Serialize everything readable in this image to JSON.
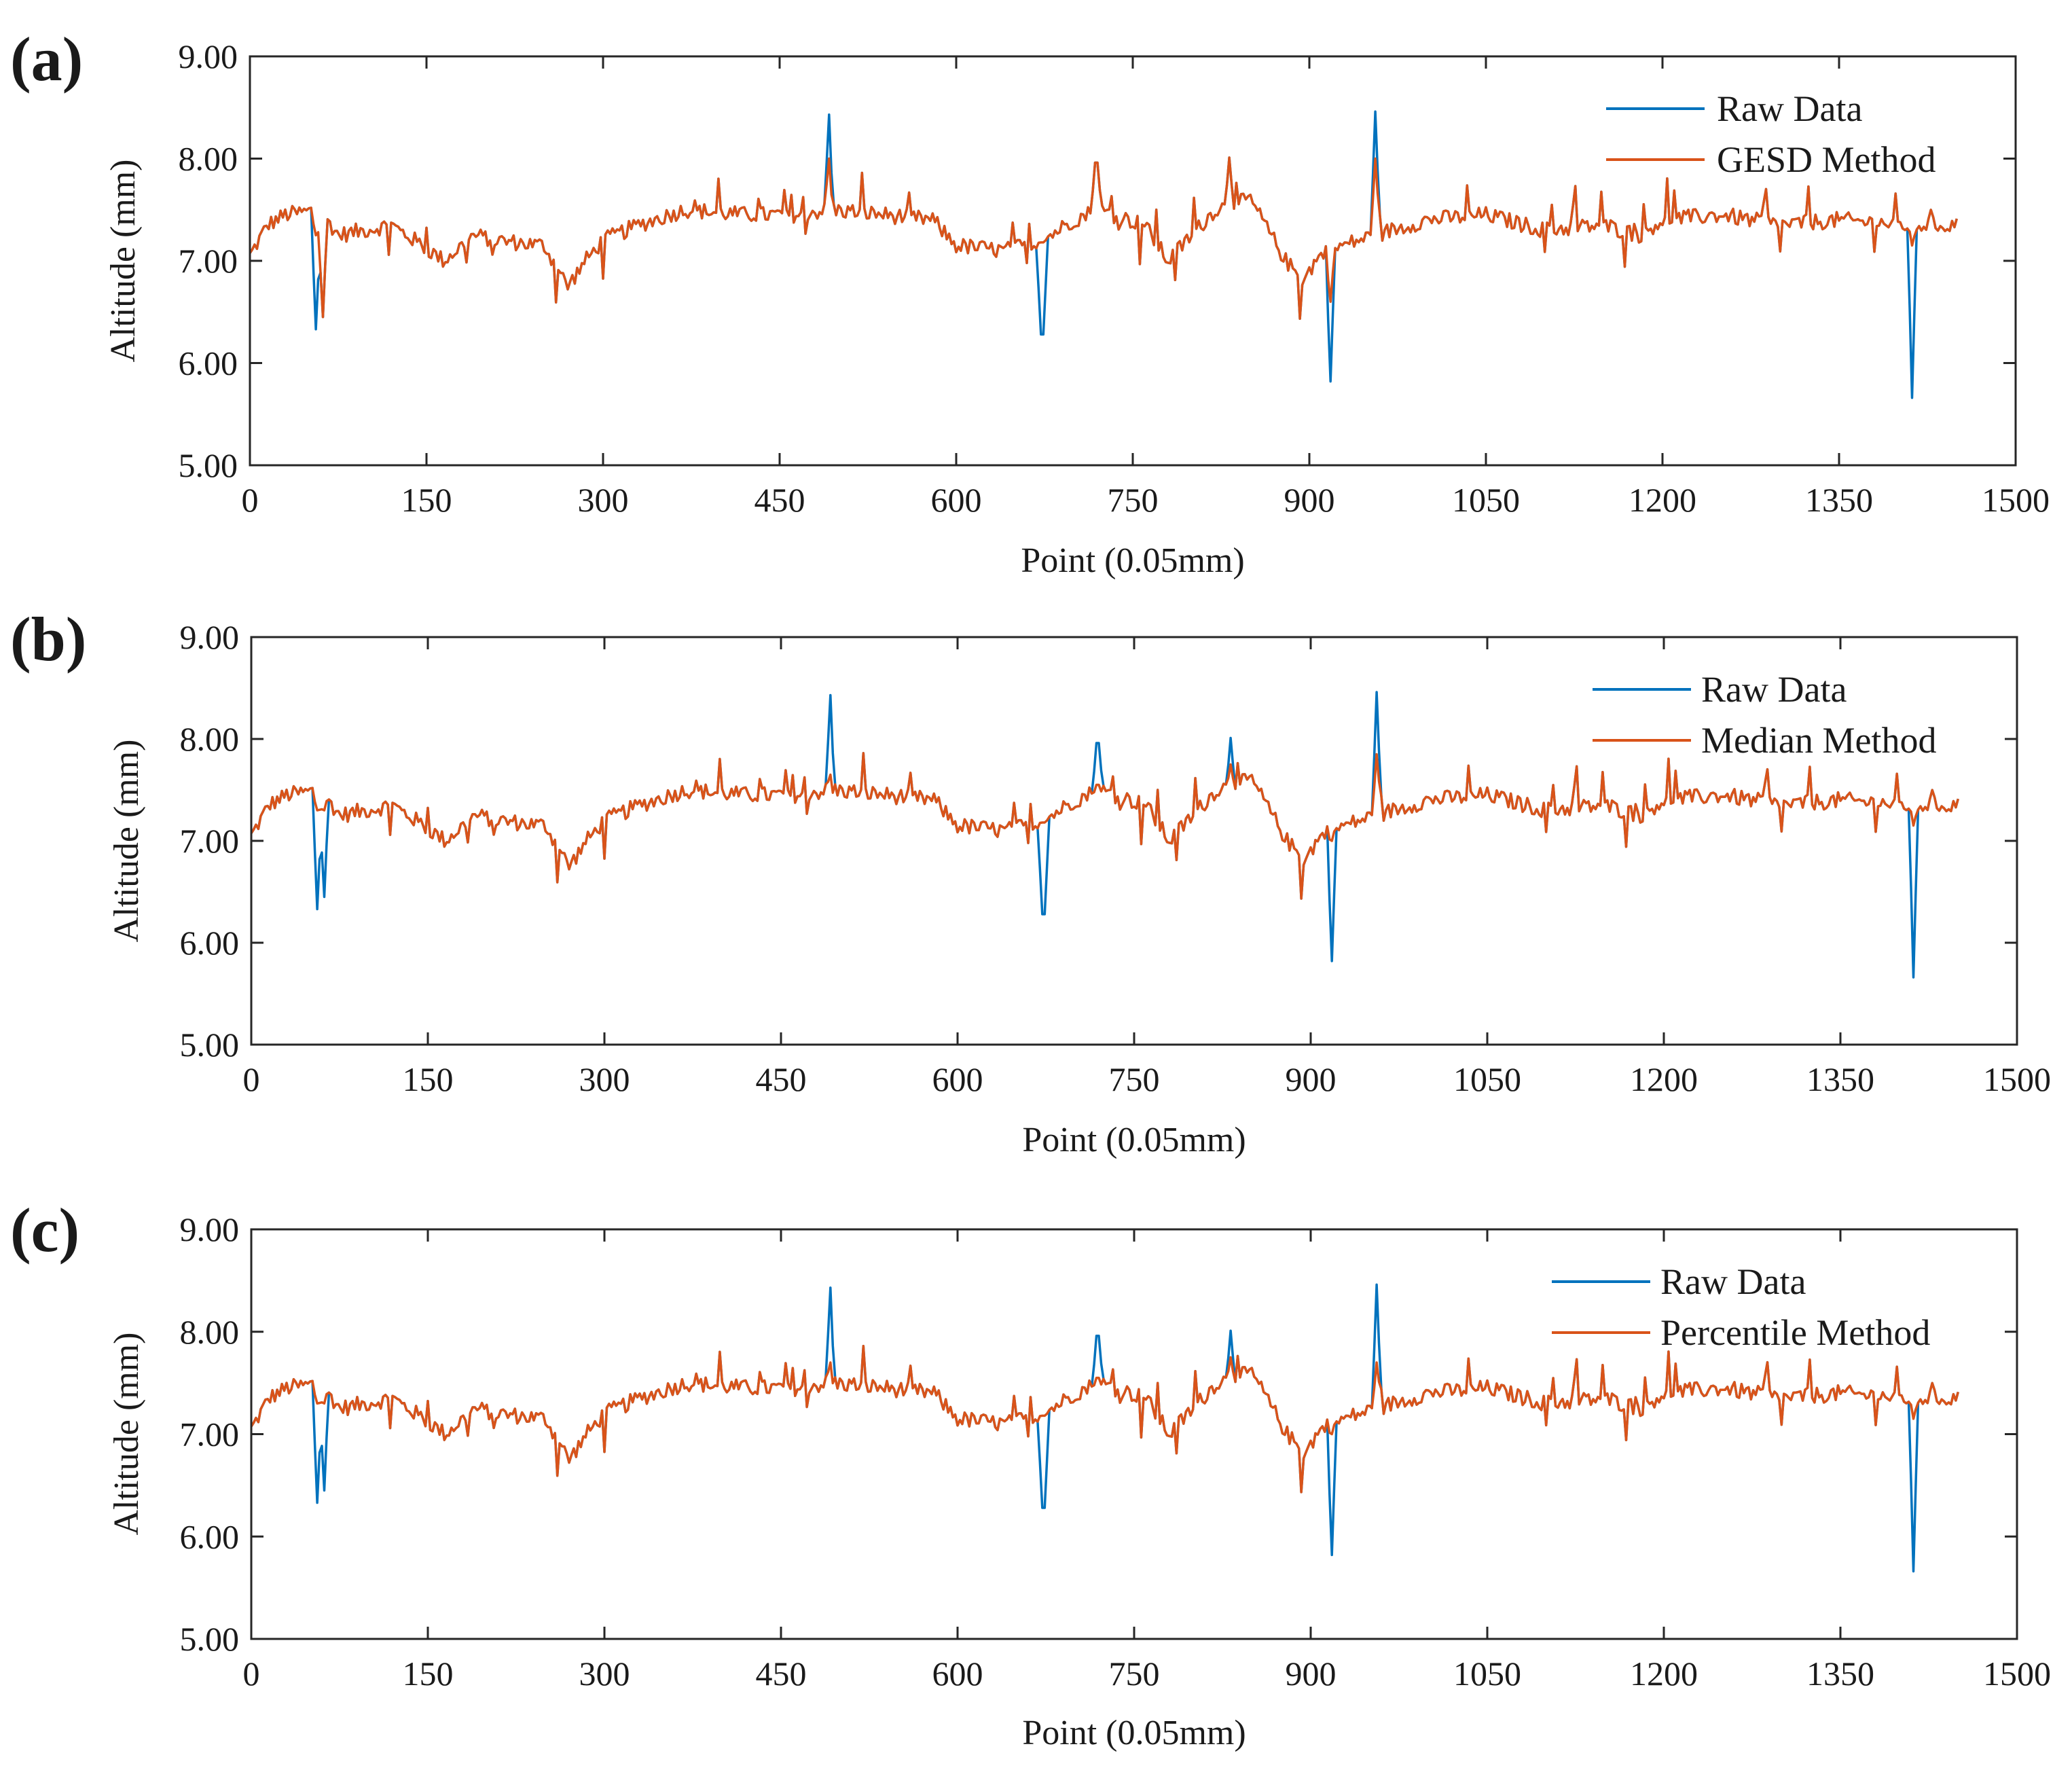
{
  "chart_data": [
    {
      "type": "line",
      "panel_label": "(a)",
      "xlabel": "Point (0.05mm)",
      "ylabel": "Altitude (mm)",
      "xlim": [
        0,
        1500
      ],
      "ylim": [
        5.0,
        9.0
      ],
      "x_ticks": [
        "0",
        "150",
        "300",
        "450",
        "600",
        "750",
        "900",
        "1050",
        "1200",
        "1350",
        "1500"
      ],
      "y_ticks": [
        "5.00",
        "6.00",
        "7.00",
        "8.00",
        "9.00"
      ],
      "legend": {
        "position": "top-right",
        "entries": [
          "Raw Data",
          "GESD Method"
        ]
      },
      "series": [
        {
          "name": "Raw Data",
          "color": "#0072BD"
        },
        {
          "name": "GESD Method",
          "color": "#D95319"
        }
      ]
    },
    {
      "type": "line",
      "panel_label": "(b)",
      "xlabel": "Point (0.05mm)",
      "ylabel": "Altitude (mm)",
      "xlim": [
        0,
        1500
      ],
      "ylim": [
        5.0,
        9.0
      ],
      "x_ticks": [
        "0",
        "150",
        "300",
        "450",
        "600",
        "750",
        "900",
        "1050",
        "1200",
        "1350",
        "1500"
      ],
      "y_ticks": [
        "5.00",
        "6.00",
        "7.00",
        "8.00",
        "9.00"
      ],
      "legend": {
        "position": "top-right",
        "entries": [
          "Raw Data",
          "Median Method"
        ]
      },
      "series": [
        {
          "name": "Raw Data",
          "color": "#0072BD"
        },
        {
          "name": "Median Method",
          "color": "#D95319"
        }
      ]
    },
    {
      "type": "line",
      "panel_label": "(c)",
      "xlabel": "Point (0.05mm)",
      "ylabel": "Altitude (mm)",
      "xlim": [
        0,
        1500
      ],
      "ylim": [
        5.0,
        9.0
      ],
      "x_ticks": [
        "0",
        "150",
        "300",
        "450",
        "600",
        "750",
        "900",
        "1050",
        "1200",
        "1350",
        "1500"
      ],
      "y_ticks": [
        "5.00",
        "6.00",
        "7.00",
        "8.00",
        "9.00"
      ],
      "legend": {
        "position": "top-right",
        "entries": [
          "Raw Data",
          "Percentile Method"
        ]
      },
      "series": [
        {
          "name": "Raw Data",
          "color": "#0072BD"
        },
        {
          "name": "Percentile Method",
          "color": "#D95319"
        }
      ]
    }
  ],
  "profile": {
    "n_points": 1450,
    "baseline": [
      [
        0,
        7.05
      ],
      [
        15,
        7.35
      ],
      [
        30,
        7.45
      ],
      [
        60,
        7.5
      ],
      [
        75,
        7.25
      ],
      [
        120,
        7.35
      ],
      [
        140,
        7.2
      ],
      [
        165,
        7.0
      ],
      [
        190,
        7.25
      ],
      [
        210,
        7.2
      ],
      [
        250,
        7.15
      ],
      [
        270,
        6.75
      ],
      [
        285,
        7.0
      ],
      [
        300,
        7.2
      ],
      [
        330,
        7.35
      ],
      [
        370,
        7.5
      ],
      [
        420,
        7.45
      ],
      [
        460,
        7.45
      ],
      [
        495,
        7.5
      ],
      [
        540,
        7.45
      ],
      [
        580,
        7.4
      ],
      [
        600,
        7.15
      ],
      [
        640,
        7.1
      ],
      [
        673,
        7.2
      ],
      [
        700,
        7.4
      ],
      [
        720,
        7.5
      ],
      [
        760,
        7.35
      ],
      [
        780,
        7.0
      ],
      [
        820,
        7.5
      ],
      [
        850,
        7.6
      ],
      [
        880,
        7.0
      ],
      [
        895,
        6.8
      ],
      [
        905,
        7.0
      ],
      [
        915,
        7.1
      ],
      [
        955,
        7.25
      ],
      [
        1000,
        7.4
      ],
      [
        1050,
        7.45
      ],
      [
        1100,
        7.3
      ],
      [
        1150,
        7.35
      ],
      [
        1180,
        7.25
      ],
      [
        1200,
        7.4
      ],
      [
        1250,
        7.45
      ],
      [
        1300,
        7.35
      ],
      [
        1350,
        7.4
      ],
      [
        1410,
        7.35
      ],
      [
        1450,
        7.35
      ]
    ],
    "spikes": [
      {
        "x": 56,
        "raw": 6.33,
        "gesd": 7.25,
        "median": 7.3,
        "percentile": 7.3
      },
      {
        "x": 62,
        "raw": 6.45,
        "gesd": 6.45,
        "median": 7.3,
        "percentile": 7.3
      },
      {
        "x": 492,
        "raw": 8.43,
        "gesd": 8.0,
        "median": 7.65,
        "percentile": 7.7
      },
      {
        "x": 673,
        "raw": 6.28,
        "gesd": 7.18,
        "median": 7.18,
        "percentile": 7.18
      },
      {
        "x": 719,
        "raw": 7.96,
        "gesd": 7.96,
        "median": 7.55,
        "percentile": 7.55
      },
      {
        "x": 832,
        "raw": 8.01,
        "gesd": 8.01,
        "median": 7.75,
        "percentile": 7.75
      },
      {
        "x": 918,
        "raw": 5.82,
        "gesd": 6.6,
        "median": 7.0,
        "percentile": 7.0
      },
      {
        "x": 956,
        "raw": 8.46,
        "gesd": 8.0,
        "median": 7.85,
        "percentile": 7.7
      },
      {
        "x": 1412,
        "raw": 5.66,
        "gesd": 7.15,
        "median": 7.15,
        "percentile": 7.15
      }
    ]
  }
}
